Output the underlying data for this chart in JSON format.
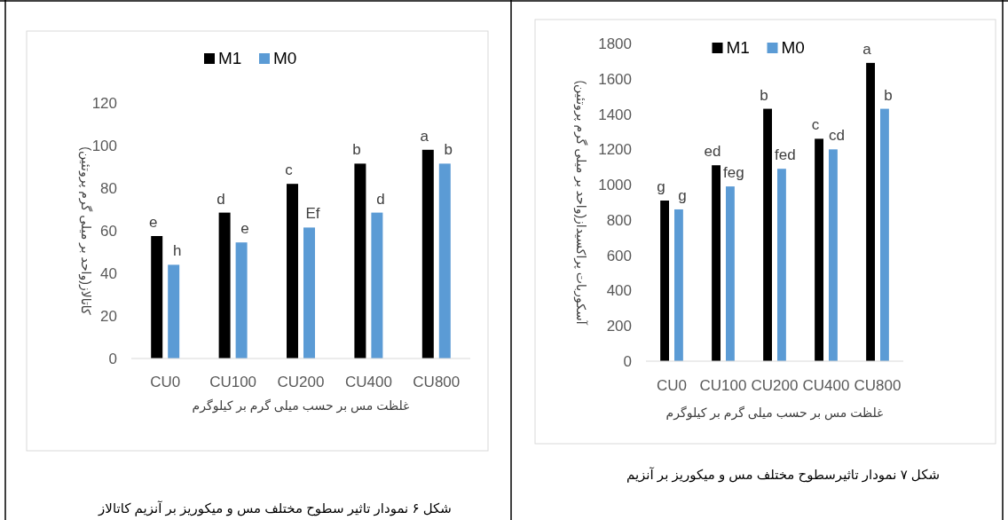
{
  "chart_data": [
    {
      "type": "bar",
      "ylabel": "کاتالاز(واحد بر میلی گرم پروتئین)",
      "xlabel": "غلظت مس بر حسب میلی گرم بر کیلوگرم",
      "categories": [
        "CU0",
        "CU100",
        "CU200",
        "CU400",
        "CU800"
      ],
      "series": [
        {
          "name": "M1",
          "color": "#000000",
          "values": [
            57.5,
            68.5,
            82,
            91.5,
            98
          ],
          "value_labels": [
            "e",
            "d",
            "c",
            "b",
            "a"
          ]
        },
        {
          "name": "M0",
          "color": "#5b9bd5",
          "values": [
            44,
            54.5,
            61.5,
            68.5,
            91.5
          ],
          "value_labels": [
            "h",
            "e",
            "Ef",
            "d",
            "b"
          ]
        }
      ],
      "ylim": [
        0,
        120
      ],
      "yticks": [
        0,
        20,
        40,
        60,
        80,
        100,
        120
      ],
      "grid": false,
      "legend": "top",
      "annotations": [
        "شکل ۶ نمودار تاثیر سطوح مختلف مس و میکوریز بر آنزیم کاتالاز"
      ]
    },
    {
      "type": "bar",
      "ylabel": "آسکوربات پراکسیداز(واحد بر میلی گرم پروتئین)",
      "xlabel": "غلظت مس بر حسب میلی گرم بر کیلوگرم",
      "categories": [
        "CU0",
        "CU100",
        "CU200",
        "CU400",
        "CU800"
      ],
      "series": [
        {
          "name": "M1",
          "color": "#000000",
          "values": [
            910,
            1110,
            1430,
            1260,
            1690
          ],
          "value_labels": [
            "g",
            "ed",
            "b",
            "c",
            "a"
          ]
        },
        {
          "name": "M0",
          "color": "#5b9bd5",
          "values": [
            860,
            990,
            1090,
            1200,
            1430
          ],
          "value_labels": [
            "g",
            "feg",
            "fed",
            "cd",
            "b"
          ]
        }
      ],
      "ylim": [
        0,
        1800
      ],
      "yticks": [
        0,
        200,
        400,
        600,
        800,
        1000,
        1200,
        1400,
        1600,
        1800
      ],
      "grid": false,
      "legend": "top",
      "annotations": [
        "شکل ۷ نمودار تاثیرسطوح مختلف مس و میکوریز بر آنزیم"
      ]
    }
  ]
}
